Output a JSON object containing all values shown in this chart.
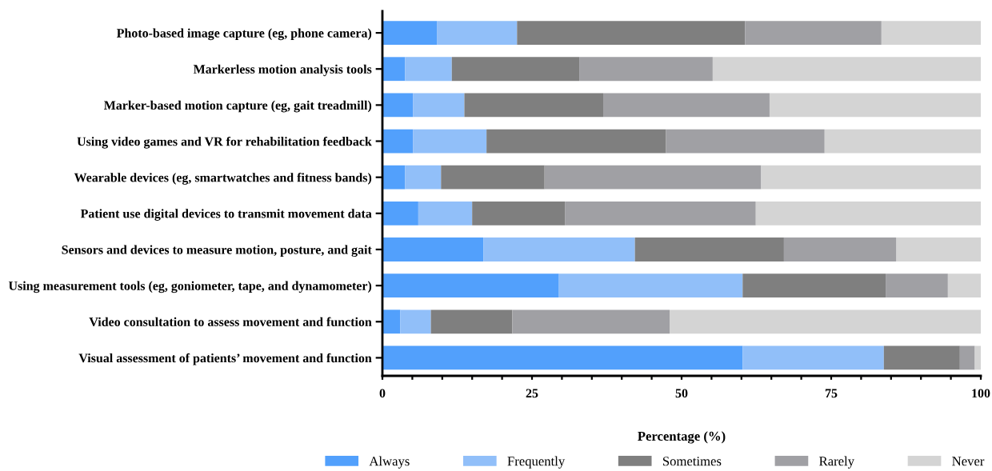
{
  "chart_data": {
    "type": "bar",
    "orientation": "horizontal",
    "stacked": true,
    "xlabel": "Percentage (%)",
    "categories": [
      "Photo-based image capture (eg, phone camera)",
      "Markerless motion analysis tools",
      "Marker-based motion capture (eg, gait treadmill)",
      "Using video games and VR for rehabilitation feedback",
      "Wearable devices (eg, smartwatches and fitness bands)",
      "Patient use digital devices to transmit movement data",
      "Sensors and devices to measure motion, posture, and gait",
      "Using measurement tools (eg, goniometer, tape, and dynamometer)",
      "Video consultation to assess movement and function",
      "Visual assessment of patients’ movement and function"
    ],
    "series": [
      {
        "name": "Always",
        "color": "#52a0fc",
        "values": [
          9.1,
          3.8,
          5.1,
          5.1,
          3.8,
          6.0,
          16.9,
          29.5,
          3.0,
          60.2
        ]
      },
      {
        "name": "Frequently",
        "color": "#91bff9",
        "values": [
          13.4,
          7.8,
          8.6,
          12.3,
          6.0,
          9.0,
          25.3,
          30.7,
          5.1,
          23.6
        ]
      },
      {
        "name": "Sometimes",
        "color": "#7f7f7f",
        "values": [
          38.1,
          21.3,
          23.2,
          30.0,
          17.3,
          15.5,
          24.9,
          23.9,
          13.6,
          12.7
        ]
      },
      {
        "name": "Rarely",
        "color": "#a0a0a4",
        "values": [
          22.8,
          22.3,
          27.8,
          26.5,
          36.2,
          31.9,
          18.8,
          10.4,
          26.3,
          2.5
        ]
      },
      {
        "name": "Never",
        "color": "#d4d4d4",
        "values": [
          16.6,
          44.8,
          35.3,
          26.1,
          36.7,
          37.6,
          14.1,
          5.5,
          52.0,
          1.0
        ]
      }
    ],
    "xlim": [
      0,
      100
    ],
    "xticks": [
      0,
      {
        "value": 5,
        "label": null
      },
      {
        "value": 10,
        "label": null
      },
      {
        "value": 15,
        "label": null
      },
      {
        "value": 20,
        "label": null
      },
      25,
      {
        "value": 30,
        "label": null
      },
      {
        "value": 35,
        "label": null
      },
      {
        "value": 40,
        "label": null
      },
      {
        "value": 45,
        "label": null
      },
      50,
      {
        "value": 55,
        "label": null
      },
      {
        "value": 60,
        "label": null
      },
      {
        "value": 65,
        "label": null
      },
      {
        "value": 70,
        "label": null
      },
      75,
      {
        "value": 80,
        "label": null
      },
      {
        "value": 85,
        "label": null
      },
      {
        "value": 90,
        "label": null
      },
      {
        "value": 95,
        "label": null
      },
      100
    ],
    "grid": false,
    "legend": "bottom"
  }
}
